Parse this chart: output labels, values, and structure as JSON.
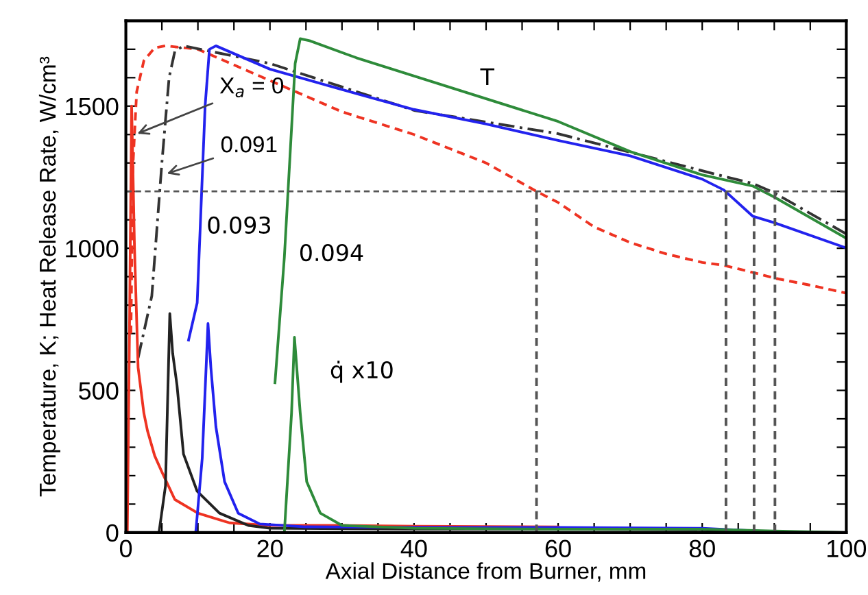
{
  "chart_data": {
    "type": "line",
    "xlabel": "Axial Distance from Burner, mm",
    "ylabel": "Temperature, K; Heat Release Rate, W/cm³",
    "xlim": [
      0,
      100
    ],
    "ylim": [
      0,
      1800
    ],
    "xticks": [
      0,
      {
        "value": 5,
        "label": null
      },
      {
        "value": 10,
        "label": null
      },
      {
        "value": 15,
        "label": null
      },
      20,
      {
        "value": 25,
        "label": null
      },
      {
        "value": 30,
        "label": null
      },
      {
        "value": 35,
        "label": null
      },
      40,
      {
        "value": 45,
        "label": null
      },
      {
        "value": 50,
        "label": null
      },
      {
        "value": 55,
        "label": null
      },
      60,
      {
        "value": 65,
        "label": null
      },
      {
        "value": 70,
        "label": null
      },
      {
        "value": 75,
        "label": null
      },
      80,
      {
        "value": 85,
        "label": null
      },
      {
        "value": 90,
        "label": null
      },
      {
        "value": 95,
        "label": null
      },
      100
    ],
    "yticks": [
      0,
      {
        "value": 100,
        "label": null
      },
      {
        "value": 200,
        "label": null
      },
      {
        "value": 300,
        "label": null
      },
      {
        "value": 400,
        "label": null
      },
      500,
      {
        "value": 600,
        "label": null
      },
      {
        "value": 700,
        "label": null
      },
      {
        "value": 800,
        "label": null
      },
      {
        "value": 900,
        "label": null
      },
      1000,
      {
        "value": 1100,
        "label": null
      },
      {
        "value": 1200,
        "label": null
      },
      {
        "value": 1300,
        "label": null
      },
      {
        "value": 1400,
        "label": null
      },
      1500,
      {
        "value": 1600,
        "label": null
      },
      {
        "value": 1700,
        "label": null
      },
      {
        "value": 1800,
        "label": null
      }
    ],
    "grid": false,
    "legend": false,
    "marker": "none",
    "series": [
      {
        "color": "#ee3322",
        "line_style": "dashed",
        "x": [
          0.7,
          1,
          1.5,
          2.5,
          4,
          5.5,
          10,
          20,
          30,
          40,
          50,
          57,
          60,
          65,
          70,
          75,
          80,
          83,
          87,
          90,
          95,
          100
        ],
        "values": [
          700,
          1300,
          1550,
          1660,
          1705,
          1712,
          1700,
          1590,
          1480,
          1400,
          1300,
          1200,
          1161,
          1075,
          1020,
          980,
          950,
          940,
          915,
          895,
          870,
          842
        ]
      },
      {
        "color": "#333333",
        "line_style": "dashdot",
        "x": [
          1.7,
          3.6,
          5,
          6,
          6.8,
          8,
          20,
          40,
          60,
          83,
          87,
          90,
          100
        ],
        "values": [
          614,
          832,
          1300,
          1600,
          1693,
          1712,
          1650,
          1485,
          1403,
          1253,
          1228,
          1195,
          1050
        ]
      },
      {
        "color": "#2222ee",
        "line_style": "solid",
        "x": [
          8.7,
          9.9,
          11,
          11.6,
          12.5,
          20,
          30,
          40,
          50,
          60,
          70,
          80,
          83,
          87,
          90,
          100
        ],
        "values": [
          677,
          808,
          1500,
          1700,
          1712,
          1630,
          1558,
          1488,
          1437,
          1379,
          1325,
          1243,
          1205,
          1113,
          1090,
          1001
        ]
      },
      {
        "color": "#2e8b3a",
        "line_style": "solid",
        "x": [
          20.7,
          22,
          23.5,
          24.2,
          25.5,
          32,
          40,
          60,
          70,
          80,
          87,
          90,
          100
        ],
        "values": [
          527,
          968,
          1650,
          1737,
          1730,
          1670,
          1606,
          1446,
          1340,
          1258,
          1219,
          1180,
          1035
        ]
      },
      {
        "color": "#ee3322",
        "line_style": "solid",
        "x": [
          0.2,
          0.5,
          0.8,
          1.2,
          1.7,
          2.5,
          3,
          4,
          5,
          6.8,
          10,
          14.4,
          20,
          30,
          40,
          60
        ],
        "values": [
          0,
          700,
          1500,
          1000,
          580,
          420,
          358,
          270,
          213,
          116,
          68,
          34,
          25,
          25,
          22,
          20
        ]
      },
      {
        "color": "#222222",
        "line_style": "solid",
        "x": [
          4.6,
          5.5,
          6.1,
          6.5,
          7.1,
          8,
          9.9,
          13,
          17,
          20,
          40,
          60,
          80,
          90,
          100
        ],
        "values": [
          0,
          164,
          770,
          630,
          518,
          276,
          145,
          68,
          25,
          15,
          12,
          12,
          10,
          2,
          0
        ]
      },
      {
        "color": "#2222ee",
        "line_style": "solid",
        "x": [
          9.7,
          10.6,
          11.4,
          11.8,
          12.5,
          13.7,
          15.6,
          18.6,
          25,
          40,
          60,
          80,
          92,
          100
        ],
        "values": [
          0,
          261,
          735,
          580,
          372,
          179,
          68,
          30,
          20,
          18,
          18,
          15,
          0,
          0
        ]
      },
      {
        "color": "#2e8b3a",
        "line_style": "solid",
        "x": [
          22,
          23,
          23.4,
          24.2,
          25.1,
          27,
          30,
          40,
          60,
          80,
          90,
          100
        ],
        "values": [
          0,
          421,
          687,
          421,
          179,
          68,
          25,
          15,
          12,
          12,
          5,
          0
        ]
      },
      {
        "color": "#555555",
        "line_style": "dashed",
        "x": [
          57,
          57
        ],
        "values": [
          0,
          1200
        ]
      },
      {
        "color": "#555555",
        "line_style": "dashed",
        "x": [
          83.3,
          83.3
        ],
        "values": [
          0,
          1200
        ]
      },
      {
        "color": "#555555",
        "line_style": "dashed",
        "x": [
          87.2,
          87.2
        ],
        "values": [
          0,
          1200
        ]
      },
      {
        "color": "#555555",
        "line_style": "dashed",
        "x": [
          90.1,
          90.1
        ],
        "values": [
          0,
          1200
        ]
      }
    ],
    "ref_lines": [
      {
        "axis": "y",
        "value": 1200,
        "color": "#555555",
        "line_style": "dashed"
      }
    ],
    "annotations": [
      {
        "text": "X$_{a}$ = 0",
        "x": 1.1,
        "y": 1398
      },
      {
        "text": "0.091",
        "x": 5.2,
        "y": 1258
      },
      "0.093",
      "0.094",
      "T",
      "q̇ x10"
    ]
  }
}
